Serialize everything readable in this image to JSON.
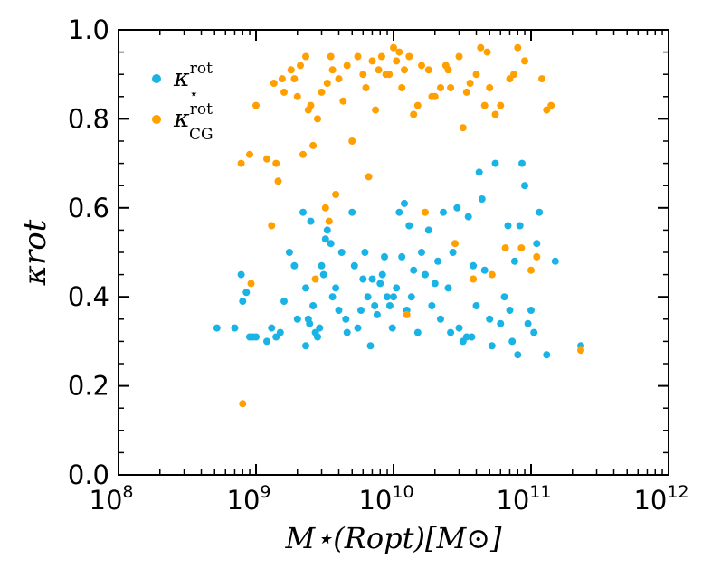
{
  "chart_data": {
    "type": "scatter",
    "xscale": "log",
    "xlim": [
      100000000.0,
      1000000000000.0
    ],
    "ylim": [
      0.0,
      1.0
    ],
    "xlabel": "M⋆(Ropt)[M⊙]",
    "ylabel": "κrot",
    "xticks": [
      {
        "base": "10",
        "exp": "8"
      },
      {
        "base": "10",
        "exp": "9"
      },
      {
        "base": "10",
        "exp": "10"
      },
      {
        "base": "10",
        "exp": "11"
      },
      {
        "base": "10",
        "exp": "12"
      }
    ],
    "yticks": [
      "0.0",
      "0.2",
      "0.4",
      "0.6",
      "0.8",
      "1.0"
    ],
    "legend_position": "top-left",
    "series": [
      {
        "name": "κ⋆rot",
        "label_main": "κ",
        "label_sup": "rot",
        "label_sub": "⋆",
        "color": "#1ab3e6",
        "points": [
          [
            520000000.0,
            0.33
          ],
          [
            700000000.0,
            0.33
          ],
          [
            780000000.0,
            0.45
          ],
          [
            800000000.0,
            0.39
          ],
          [
            850000000.0,
            0.41
          ],
          [
            900000000.0,
            0.31
          ],
          [
            950000000.0,
            0.31
          ],
          [
            1000000000.0,
            0.31
          ],
          [
            1200000000.0,
            0.3
          ],
          [
            1300000000.0,
            0.33
          ],
          [
            1400000000.0,
            0.31
          ],
          [
            1500000000.0,
            0.32
          ],
          [
            1600000000.0,
            0.39
          ],
          [
            1750000000.0,
            0.5
          ],
          [
            1900000000.0,
            0.47
          ],
          [
            2000000000.0,
            0.35
          ],
          [
            2200000000.0,
            0.59
          ],
          [
            2300000000.0,
            0.42
          ],
          [
            2300000000.0,
            0.29
          ],
          [
            2400000000.0,
            0.35
          ],
          [
            2450000000.0,
            0.34
          ],
          [
            2500000000.0,
            0.57
          ],
          [
            2600000000.0,
            0.38
          ],
          [
            2700000000.0,
            0.32
          ],
          [
            2800000000.0,
            0.31
          ],
          [
            2900000000.0,
            0.33
          ],
          [
            3000000000.0,
            0.47
          ],
          [
            3100000000.0,
            0.45
          ],
          [
            3200000000.0,
            0.53
          ],
          [
            3300000000.0,
            0.55
          ],
          [
            3500000000.0,
            0.52
          ],
          [
            3600000000.0,
            0.4
          ],
          [
            3800000000.0,
            0.42
          ],
          [
            4000000000.0,
            0.37
          ],
          [
            4200000000.0,
            0.5
          ],
          [
            4500000000.0,
            0.35
          ],
          [
            4600000000.0,
            0.32
          ],
          [
            5000000000.0,
            0.59
          ],
          [
            5200000000.0,
            0.47
          ],
          [
            5500000000.0,
            0.33
          ],
          [
            5800000000.0,
            0.37
          ],
          [
            6000000000.0,
            0.44
          ],
          [
            6200000000.0,
            0.5
          ],
          [
            6500000000.0,
            0.4
          ],
          [
            6800000000.0,
            0.29
          ],
          [
            7000000000.0,
            0.44
          ],
          [
            7300000000.0,
            0.38
          ],
          [
            7600000000.0,
            0.36
          ],
          [
            8000000000.0,
            0.43
          ],
          [
            8300000000.0,
            0.45
          ],
          [
            8600000000.0,
            0.49
          ],
          [
            9000000000.0,
            0.4
          ],
          [
            9400000000.0,
            0.38
          ],
          [
            9800000000.0,
            0.33
          ],
          [
            10000000000.0,
            0.4
          ],
          [
            10500000000.0,
            0.42
          ],
          [
            11000000000.0,
            0.59
          ],
          [
            11500000000.0,
            0.49
          ],
          [
            12000000000.0,
            0.61
          ],
          [
            12500000000.0,
            0.37
          ],
          [
            13000000000.0,
            0.56
          ],
          [
            13500000000.0,
            0.4
          ],
          [
            14000000000.0,
            0.46
          ],
          [
            15000000000.0,
            0.32
          ],
          [
            16000000000.0,
            0.5
          ],
          [
            17000000000.0,
            0.45
          ],
          [
            18000000000.0,
            0.55
          ],
          [
            19000000000.0,
            0.38
          ],
          [
            20000000000.0,
            0.43
          ],
          [
            21000000000.0,
            0.48
          ],
          [
            22000000000.0,
            0.35
          ],
          [
            23000000000.0,
            0.59
          ],
          [
            25000000000.0,
            0.42
          ],
          [
            26000000000.0,
            0.32
          ],
          [
            27000000000.0,
            0.5
          ],
          [
            29000000000.0,
            0.6
          ],
          [
            30000000000.0,
            0.33
          ],
          [
            32000000000.0,
            0.3
          ],
          [
            34000000000.0,
            0.31
          ],
          [
            35000000000.0,
            0.58
          ],
          [
            37000000000.0,
            0.31
          ],
          [
            38000000000.0,
            0.47
          ],
          [
            40000000000.0,
            0.38
          ],
          [
            42000000000.0,
            0.68
          ],
          [
            44000000000.0,
            0.62
          ],
          [
            46000000000.0,
            0.46
          ],
          [
            50000000000.0,
            0.35
          ],
          [
            52000000000.0,
            0.29
          ],
          [
            55000000000.0,
            0.7
          ],
          [
            60000000000.0,
            0.34
          ],
          [
            64000000000.0,
            0.4
          ],
          [
            68000000000.0,
            0.56
          ],
          [
            70000000000.0,
            0.37
          ],
          [
            73000000000.0,
            0.3
          ],
          [
            76000000000.0,
            0.48
          ],
          [
            80000000000.0,
            0.27
          ],
          [
            83000000000.0,
            0.56
          ],
          [
            86000000000.0,
            0.7
          ],
          [
            90000000000.0,
            0.65
          ],
          [
            95000000000.0,
            0.34
          ],
          [
            100000000000.0,
            0.37
          ],
          [
            105000000000.0,
            0.32
          ],
          [
            110000000000.0,
            0.52
          ],
          [
            115000000000.0,
            0.59
          ],
          [
            130000000000.0,
            0.27
          ],
          [
            150000000000.0,
            0.48
          ],
          [
            230000000000.0,
            0.29
          ]
        ]
      },
      {
        "name": "κCGrot",
        "label_main": "κ",
        "label_sup": "rot",
        "label_sub": "CG",
        "color": "#ff9f00",
        "points": [
          [
            800000000.0,
            0.16
          ],
          [
            780000000.0,
            0.7
          ],
          [
            900000000.0,
            0.72
          ],
          [
            920000000.0,
            0.43
          ],
          [
            1000000000.0,
            0.83
          ],
          [
            1200000000.0,
            0.71
          ],
          [
            1300000000.0,
            0.56
          ],
          [
            1350000000.0,
            0.88
          ],
          [
            1400000000.0,
            0.7
          ],
          [
            1450000000.0,
            0.66
          ],
          [
            1550000000.0,
            0.89
          ],
          [
            1600000000.0,
            0.86
          ],
          [
            1800000000.0,
            0.91
          ],
          [
            1900000000.0,
            0.89
          ],
          [
            2000000000.0,
            0.85
          ],
          [
            2100000000.0,
            0.92
          ],
          [
            2200000000.0,
            0.72
          ],
          [
            2300000000.0,
            0.94
          ],
          [
            2400000000.0,
            0.82
          ],
          [
            2500000000.0,
            0.83
          ],
          [
            2600000000.0,
            0.74
          ],
          [
            2700000000.0,
            0.44
          ],
          [
            2800000000.0,
            0.8
          ],
          [
            3000000000.0,
            0.86
          ],
          [
            3200000000.0,
            0.6
          ],
          [
            3300000000.0,
            0.88
          ],
          [
            3400000000.0,
            0.57
          ],
          [
            3500000000.0,
            0.94
          ],
          [
            3600000000.0,
            0.91
          ],
          [
            3800000000.0,
            0.63
          ],
          [
            4000000000.0,
            0.89
          ],
          [
            4300000000.0,
            0.84
          ],
          [
            4600000000.0,
            0.92
          ],
          [
            5000000000.0,
            0.75
          ],
          [
            5500000000.0,
            0.94
          ],
          [
            6000000000.0,
            0.9
          ],
          [
            6300000000.0,
            0.87
          ],
          [
            6600000000.0,
            0.67
          ],
          [
            7000000000.0,
            0.93
          ],
          [
            7400000000.0,
            0.82
          ],
          [
            7800000000.0,
            0.91
          ],
          [
            8200000000.0,
            0.94
          ],
          [
            8800000000.0,
            0.9
          ],
          [
            9300000000.0,
            0.9
          ],
          [
            10000000000.0,
            0.96
          ],
          [
            10500000000.0,
            0.93
          ],
          [
            11000000000.0,
            0.95
          ],
          [
            11500000000.0,
            0.87
          ],
          [
            12000000000.0,
            0.91
          ],
          [
            12500000000.0,
            0.36
          ],
          [
            13000000000.0,
            0.94
          ],
          [
            14000000000.0,
            0.81
          ],
          [
            15000000000.0,
            0.83
          ],
          [
            16000000000.0,
            0.92
          ],
          [
            17000000000.0,
            0.59
          ],
          [
            18000000000.0,
            0.91
          ],
          [
            19000000000.0,
            0.85
          ],
          [
            20000000000.0,
            0.85
          ],
          [
            22000000000.0,
            0.87
          ],
          [
            24000000000.0,
            0.92
          ],
          [
            25000000000.0,
            0.91
          ],
          [
            26000000000.0,
            0.87
          ],
          [
            28000000000.0,
            0.52
          ],
          [
            30000000000.0,
            0.94
          ],
          [
            32000000000.0,
            0.78
          ],
          [
            34000000000.0,
            0.86
          ],
          [
            36000000000.0,
            0.88
          ],
          [
            38000000000.0,
            0.44
          ],
          [
            40000000000.0,
            0.9
          ],
          [
            43000000000.0,
            0.96
          ],
          [
            46000000000.0,
            0.83
          ],
          [
            48000000000.0,
            0.95
          ],
          [
            50000000000.0,
            0.87
          ],
          [
            52000000000.0,
            0.45
          ],
          [
            55000000000.0,
            0.81
          ],
          [
            60000000000.0,
            0.83
          ],
          [
            65000000000.0,
            0.51
          ],
          [
            70000000000.0,
            0.89
          ],
          [
            75000000000.0,
            0.9
          ],
          [
            80000000000.0,
            0.96
          ],
          [
            85000000000.0,
            0.51
          ],
          [
            90000000000.0,
            0.93
          ],
          [
            100000000000.0,
            0.46
          ],
          [
            110000000000.0,
            0.49
          ],
          [
            120000000000.0,
            0.89
          ],
          [
            130000000000.0,
            0.82
          ],
          [
            140000000000.0,
            0.83
          ],
          [
            230000000000.0,
            0.28
          ]
        ]
      }
    ]
  }
}
